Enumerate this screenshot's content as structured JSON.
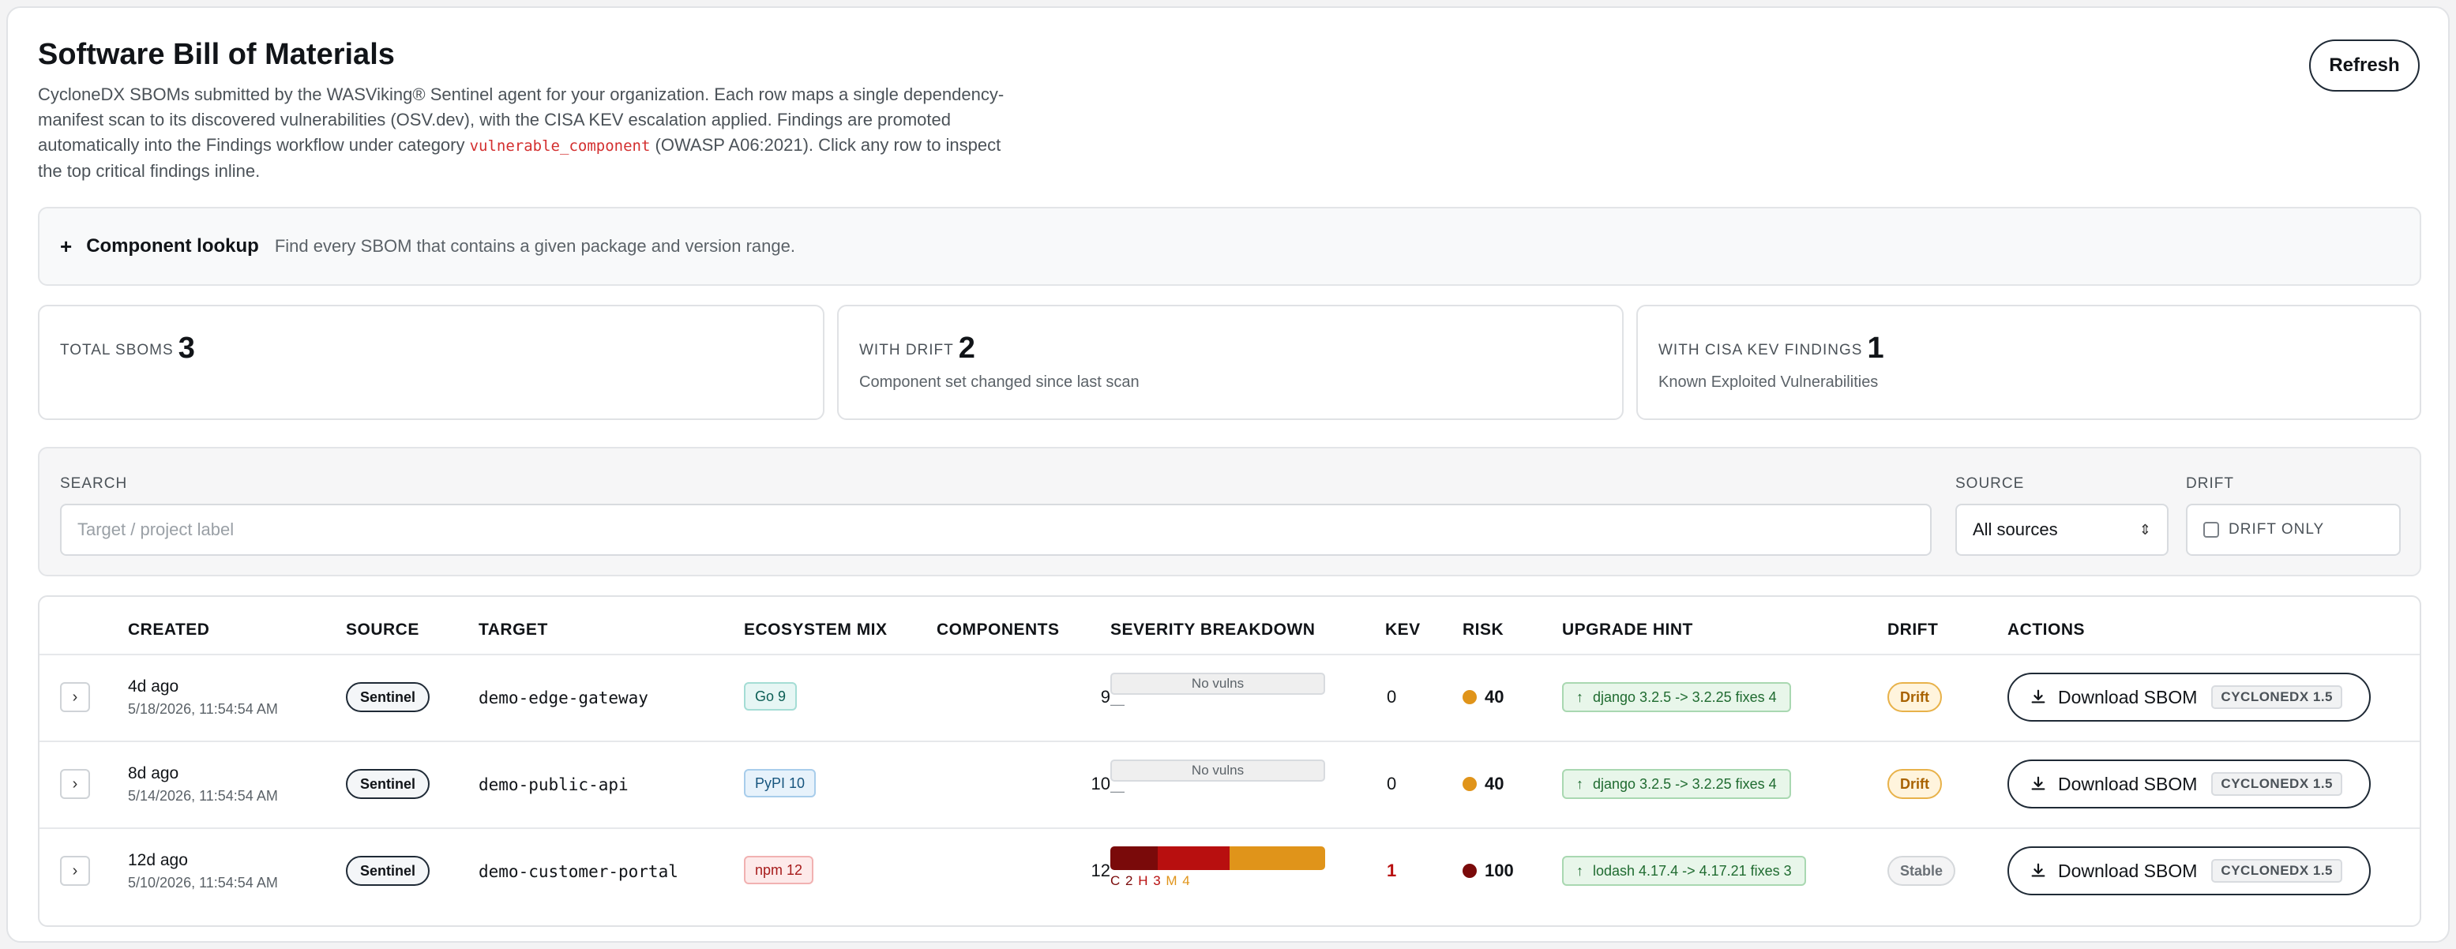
{
  "header": {
    "title": "Software Bill of Materials",
    "desc_before": "CycloneDX SBOMs submitted by the WASViking® Sentinel agent for your organization. Each row maps a single dependency-manifest scan to its discovered vulnerabilities (OSV.dev), with the CISA KEV escalation applied. Findings are promoted automatically into the Findings workflow under category ",
    "desc_code": "vulnerable_component",
    "desc_after": " (OWASP A06:2021). Click any row to inspect the top critical findings inline.",
    "refresh_label": "Refresh"
  },
  "lookup": {
    "icon": "plus-icon",
    "title": "Component lookup",
    "subtitle": "Find every SBOM that contains a given package and version range."
  },
  "stats": [
    {
      "label": "TOTAL SBOMS",
      "value": "3",
      "sub": ""
    },
    {
      "label": "WITH DRIFT",
      "value": "2",
      "sub": "Component set changed since last scan"
    },
    {
      "label": "WITH CISA KEV FINDINGS",
      "value": "1",
      "sub": "Known Exploited Vulnerabilities"
    }
  ],
  "filters": {
    "search_label": "SEARCH",
    "search_placeholder": "Target / project label",
    "source_label": "SOURCE",
    "source_value": "All sources",
    "drift_label": "DRIFT",
    "drift_only": "DRIFT ONLY"
  },
  "table": {
    "headers": [
      "CREATED",
      "SOURCE",
      "TARGET",
      "ECOSYSTEM MIX",
      "COMPONENTS",
      "SEVERITY BREAKDOWN",
      "KEV",
      "RISK",
      "UPGRADE HINT",
      "DRIFT",
      "ACTIONS"
    ],
    "rows": [
      {
        "created": "4d ago",
        "created_full": "5/18/2026, 11:54:54 AM",
        "source": "Sentinel",
        "target": "demo-edge-gateway",
        "eco": "Go 9",
        "components": "9",
        "severity": "No vulns",
        "severity_dash": "—",
        "kev": "0",
        "risk": "40",
        "risk_color": "#e0941a",
        "hint": "django 3.2.5 -> 3.2.25 fixes 4",
        "drift": "Drift",
        "action": "Download SBOM",
        "format": "CYCLONEDX 1.5"
      },
      {
        "created": "8d ago",
        "created_full": "5/14/2026, 11:54:54 AM",
        "source": "Sentinel",
        "target": "demo-public-api",
        "eco": "PyPI 10",
        "components": "10",
        "severity": "No vulns",
        "severity_dash": "—",
        "kev": "0",
        "risk": "40",
        "risk_color": "#e0941a",
        "hint": "django 3.2.5 -> 3.2.25 fixes 4",
        "drift": "Drift",
        "action": "Download SBOM",
        "format": "CYCLONEDX 1.5"
      },
      {
        "created": "12d ago",
        "created_full": "5/10/2026, 11:54:54 AM",
        "source": "Sentinel",
        "target": "demo-customer-portal",
        "eco": "npm 12",
        "components": "12",
        "sev_c": "C 2",
        "sev_h": "H 3",
        "sev_m": "M 4",
        "sev_counts": {
          "critical": 2,
          "high": 3,
          "medium": 4
        },
        "kev": "1",
        "risk": "100",
        "risk_color": "#7a0a0a",
        "hint": "lodash 4.17.4 -> 4.17.21 fixes 3",
        "drift": "Stable",
        "action": "Download SBOM",
        "format": "CYCLONEDX 1.5"
      }
    ]
  },
  "colors": {
    "critical": "#7a0a0a",
    "high": "#b80f0f",
    "medium": "#e0941a"
  }
}
